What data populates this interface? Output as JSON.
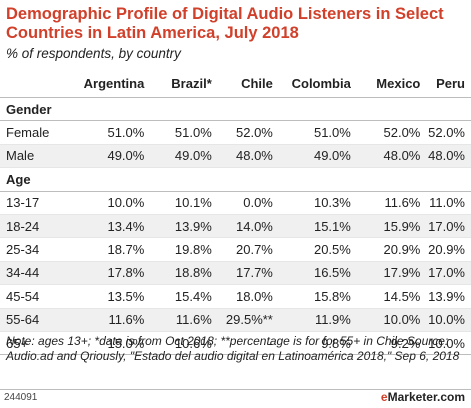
{
  "chart_data": {
    "type": "table",
    "title": "Demographic Profile of Digital Audio Listeners in Select Countries in Latin America, July 2018",
    "subtitle": "% of respondents, by country",
    "columns": [
      "Argentina",
      "Brazil*",
      "Chile",
      "Colombia",
      "Mexico",
      "Peru"
    ],
    "sections": [
      {
        "name": "Gender",
        "rows": [
          {
            "label": "Female",
            "values": [
              "51.0%",
              "51.0%",
              "52.0%",
              "51.0%",
              "52.0%",
              "52.0%"
            ]
          },
          {
            "label": "Male",
            "values": [
              "49.0%",
              "49.0%",
              "48.0%",
              "49.0%",
              "48.0%",
              "48.0%"
            ]
          }
        ]
      },
      {
        "name": "Age",
        "rows": [
          {
            "label": "13-17",
            "values": [
              "10.0%",
              "10.1%",
              "0.0%",
              "10.3%",
              "11.6%",
              "11.0%"
            ]
          },
          {
            "label": "18-24",
            "values": [
              "13.4%",
              "13.9%",
              "14.0%",
              "15.1%",
              "15.9%",
              "17.0%"
            ]
          },
          {
            "label": "25-34",
            "values": [
              "18.7%",
              "19.8%",
              "20.7%",
              "20.5%",
              "20.9%",
              "20.9%"
            ]
          },
          {
            "label": "34-44",
            "values": [
              "17.8%",
              "18.8%",
              "17.7%",
              "16.5%",
              "17.9%",
              "17.0%"
            ]
          },
          {
            "label": "45-54",
            "values": [
              "13.5%",
              "15.4%",
              "18.0%",
              "15.8%",
              "14.5%",
              "13.9%"
            ]
          },
          {
            "label": "55-64",
            "values": [
              "11.6%",
              "11.6%",
              "29.5%**",
              "11.9%",
              "10.0%",
              "10.0%"
            ]
          },
          {
            "label": "65+",
            "values": [
              "15.0%",
              "10.6%",
              "-",
              "9.8%",
              "9.2%",
              "10.0%"
            ]
          }
        ]
      }
    ],
    "note": "Note: ages 13+; *data is from Oct 2018; **percentage is for for 55+ in Chile Source: Audio.ad and Qriously, \"Estado del audio digital en Latinoamérica 2018,\" Sep 6, 2018",
    "chart_id": "244091",
    "logo_prefix": "e",
    "logo_rest": "Marketer",
    "logo_suffix": ".com"
  }
}
